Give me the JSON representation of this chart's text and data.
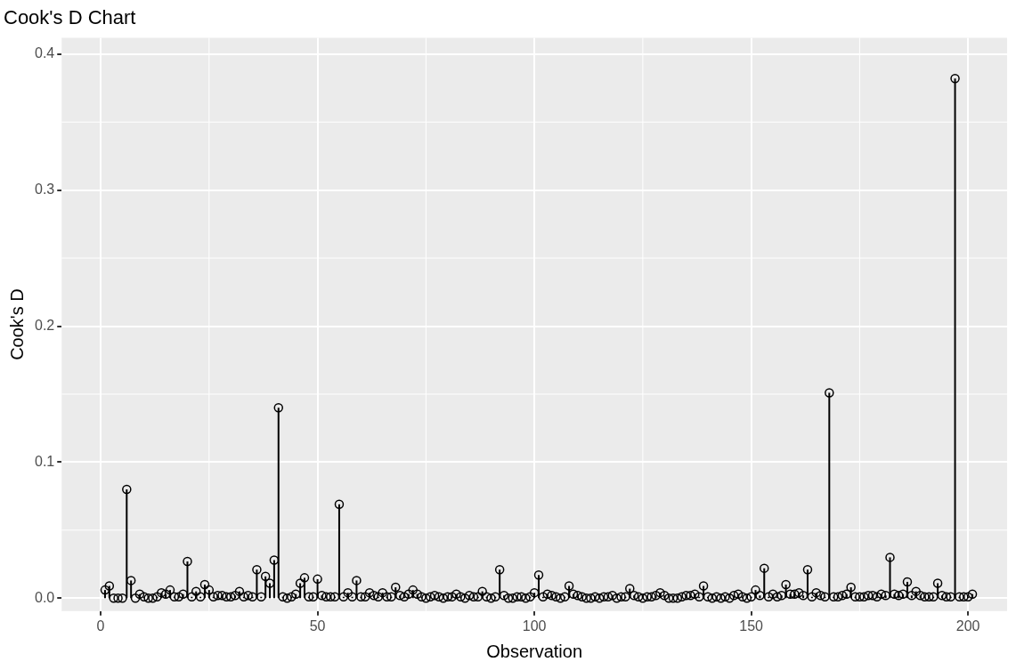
{
  "chart_data": {
    "type": "lollipop",
    "title": "Cook's D Chart",
    "xlabel": "Observation",
    "ylabel": "Cook's D",
    "x": [
      1,
      2,
      3,
      4,
      5,
      6,
      7,
      8,
      9,
      10,
      11,
      12,
      13,
      14,
      15,
      16,
      17,
      18,
      19,
      20,
      21,
      22,
      23,
      24,
      25,
      26,
      27,
      28,
      29,
      30,
      31,
      32,
      33,
      34,
      35,
      36,
      37,
      38,
      39,
      40,
      41,
      42,
      43,
      44,
      45,
      46,
      47,
      48,
      49,
      50,
      51,
      52,
      53,
      54,
      55,
      56,
      57,
      58,
      59,
      60,
      61,
      62,
      63,
      64,
      65,
      66,
      67,
      68,
      69,
      70,
      71,
      72,
      73,
      74,
      75,
      76,
      77,
      78,
      79,
      80,
      81,
      82,
      83,
      84,
      85,
      86,
      87,
      88,
      89,
      90,
      91,
      92,
      93,
      94,
      95,
      96,
      97,
      98,
      99,
      100,
      101,
      102,
      103,
      104,
      105,
      106,
      107,
      108,
      109,
      110,
      111,
      112,
      113,
      114,
      115,
      116,
      117,
      118,
      119,
      120,
      121,
      122,
      123,
      124,
      125,
      126,
      127,
      128,
      129,
      130,
      131,
      132,
      133,
      134,
      135,
      136,
      137,
      138,
      139,
      140,
      141,
      142,
      143,
      144,
      145,
      146,
      147,
      148,
      149,
      150,
      151,
      152,
      153,
      154,
      155,
      156,
      157,
      158,
      159,
      160,
      161,
      162,
      163,
      164,
      165,
      166,
      167,
      168,
      169,
      170,
      171,
      172,
      173,
      174,
      175,
      176,
      177,
      178,
      179,
      180,
      181,
      182,
      183,
      184,
      185,
      186,
      187,
      188,
      189,
      190,
      191,
      192,
      193,
      194,
      195,
      196,
      197,
      198,
      199,
      200,
      201
    ],
    "values": [
      0.006,
      0.009,
      0,
      0,
      0,
      0.08,
      0.013,
      0,
      0.003,
      0.001,
      0,
      0,
      0.001,
      0.004,
      0.003,
      0.006,
      0.001,
      0.001,
      0.003,
      0.027,
      0.001,
      0.005,
      0.001,
      0.01,
      0.006,
      0.001,
      0.002,
      0.002,
      0.001,
      0.001,
      0.002,
      0.005,
      0.001,
      0.002,
      0.001,
      0.021,
      0.001,
      0.016,
      0.011,
      0.028,
      0.14,
      0.001,
      0,
      0.001,
      0.003,
      0.011,
      0.015,
      0.001,
      0.001,
      0.014,
      0.002,
      0.001,
      0.001,
      0.001,
      0.069,
      0.001,
      0.004,
      0.001,
      0.013,
      0.001,
      0.001,
      0.004,
      0.002,
      0.001,
      0.004,
      0.001,
      0.001,
      0.008,
      0.002,
      0.001,
      0.003,
      0.006,
      0.003,
      0.001,
      0,
      0.001,
      0.002,
      0.001,
      0,
      0.001,
      0.001,
      0.003,
      0.001,
      0,
      0.002,
      0.001,
      0.001,
      0.005,
      0.001,
      0,
      0.001,
      0.021,
      0.002,
      0,
      0,
      0.001,
      0.001,
      0,
      0.001,
      0.004,
      0.017,
      0.001,
      0.003,
      0.002,
      0.001,
      0,
      0.001,
      0.009,
      0.003,
      0.002,
      0.001,
      0,
      0,
      0.001,
      0,
      0.001,
      0.001,
      0.002,
      0,
      0.001,
      0.001,
      0.007,
      0.002,
      0.001,
      0,
      0.001,
      0.001,
      0.002,
      0.004,
      0.002,
      0,
      0,
      0,
      0.001,
      0.002,
      0.002,
      0.003,
      0.001,
      0.009,
      0.001,
      0,
      0.001,
      0,
      0.001,
      0,
      0.002,
      0.003,
      0.001,
      0,
      0.001,
      0.006,
      0.002,
      0.022,
      0.001,
      0.003,
      0.001,
      0.002,
      0.01,
      0.003,
      0.003,
      0.004,
      0.002,
      0.021,
      0.001,
      0.004,
      0.002,
      0.001,
      0.151,
      0.001,
      0.001,
      0.002,
      0.003,
      0.008,
      0.001,
      0.001,
      0.001,
      0.002,
      0.002,
      0.001,
      0.003,
      0.002,
      0.03,
      0.003,
      0.002,
      0.003,
      0.012,
      0.002,
      0.005,
      0.002,
      0.001,
      0.001,
      0.001,
      0.011,
      0.002,
      0.001,
      0.001,
      0.382,
      0.001,
      0.001,
      0.001,
      0.003
    ],
    "color": "#000000",
    "marker": "circle",
    "xlim": [
      -9,
      209
    ],
    "xticks": [
      0,
      50,
      100,
      150,
      200
    ],
    "ylim": [
      -0.0095,
      0.412
    ],
    "yticks": [
      {
        "value": 0,
        "label": "0.0"
      },
      {
        "value": 0.1,
        "label": "0.1"
      },
      {
        "value": 0.2,
        "label": "0.2"
      },
      {
        "value": 0.3,
        "label": "0.3"
      },
      {
        "value": 0.4,
        "label": "0.4"
      }
    ],
    "grid": true,
    "legend": false
  }
}
